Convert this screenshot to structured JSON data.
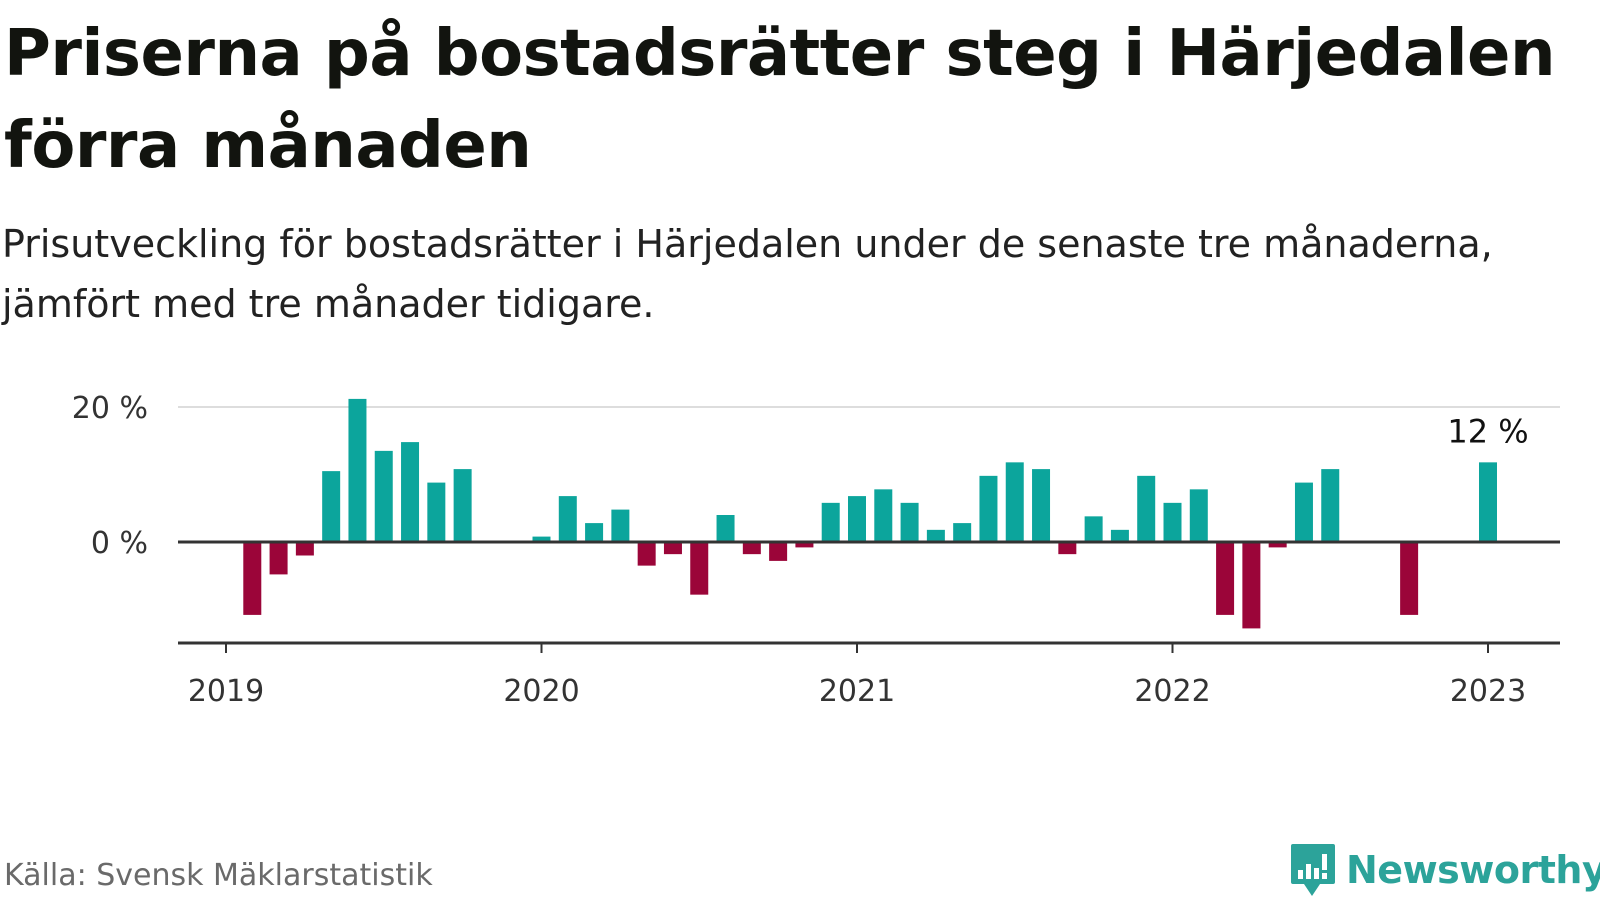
{
  "header": {
    "title": "Priserna på bostadsrätter steg i Härjedalen förra månaden",
    "subtitle": "Prisutveckling för bostadsrätter i Härjedalen under de senaste tre månaderna, jämfört med tre månader tidigare."
  },
  "footer": {
    "source": "Källa: Svensk Mäklarstatistik",
    "brand": "Newsworthy"
  },
  "colors": {
    "positive": "#0ca59c",
    "negative": "#9b0539",
    "grid": "#dddddd",
    "axis": "#333333",
    "brand": "#2ca39a"
  },
  "icons": {
    "brand_logo": "bar-chart-speech-bubble-icon"
  },
  "chart_data": {
    "type": "bar",
    "x_ticks": [
      "2019",
      "2020",
      "2021",
      "2022",
      "2023"
    ],
    "y_ticks": [
      {
        "value": 20,
        "label": "20 %"
      },
      {
        "value": 0,
        "label": "0 %"
      }
    ],
    "ylim": [
      -15,
      21
    ],
    "grid": true,
    "annotation": {
      "date": "2023-01",
      "label": "12 %"
    },
    "series": [
      {
        "dates": [
          "2019-02",
          "2019-03",
          "2019-04",
          "2019-05",
          "2019-06",
          "2019-07",
          "2019-08",
          "2019-09",
          "2019-10",
          "2020-01",
          "2020-02",
          "2020-03",
          "2020-04",
          "2020-05",
          "2020-06",
          "2020-07",
          "2020-08",
          "2020-09",
          "2020-10",
          "2020-11",
          "2020-12",
          "2021-01",
          "2021-02",
          "2021-03",
          "2021-04",
          "2021-05",
          "2021-06",
          "2021-07",
          "2021-08",
          "2021-09",
          "2021-10",
          "2021-11",
          "2021-12",
          "2022-01",
          "2022-02",
          "2022-03",
          "2022-04",
          "2022-05",
          "2022-06",
          "2022-07",
          "2022-10",
          "2023-01"
        ],
        "values": [
          -10.8,
          -4.8,
          -2,
          10.5,
          21.2,
          13.5,
          14.8,
          8.8,
          10.8,
          0.8,
          6.8,
          2.8,
          4.8,
          -3.5,
          -1.8,
          -7.8,
          4,
          -1.8,
          -2.8,
          -0.8,
          5.8,
          6.8,
          7.8,
          5.8,
          1.8,
          2.8,
          9.8,
          11.8,
          10.8,
          -1.8,
          3.8,
          1.8,
          9.8,
          5.8,
          7.8,
          -10.8,
          -12.8,
          -0.8,
          8.8,
          10.8,
          -10.8,
          11.8
        ]
      }
    ]
  }
}
